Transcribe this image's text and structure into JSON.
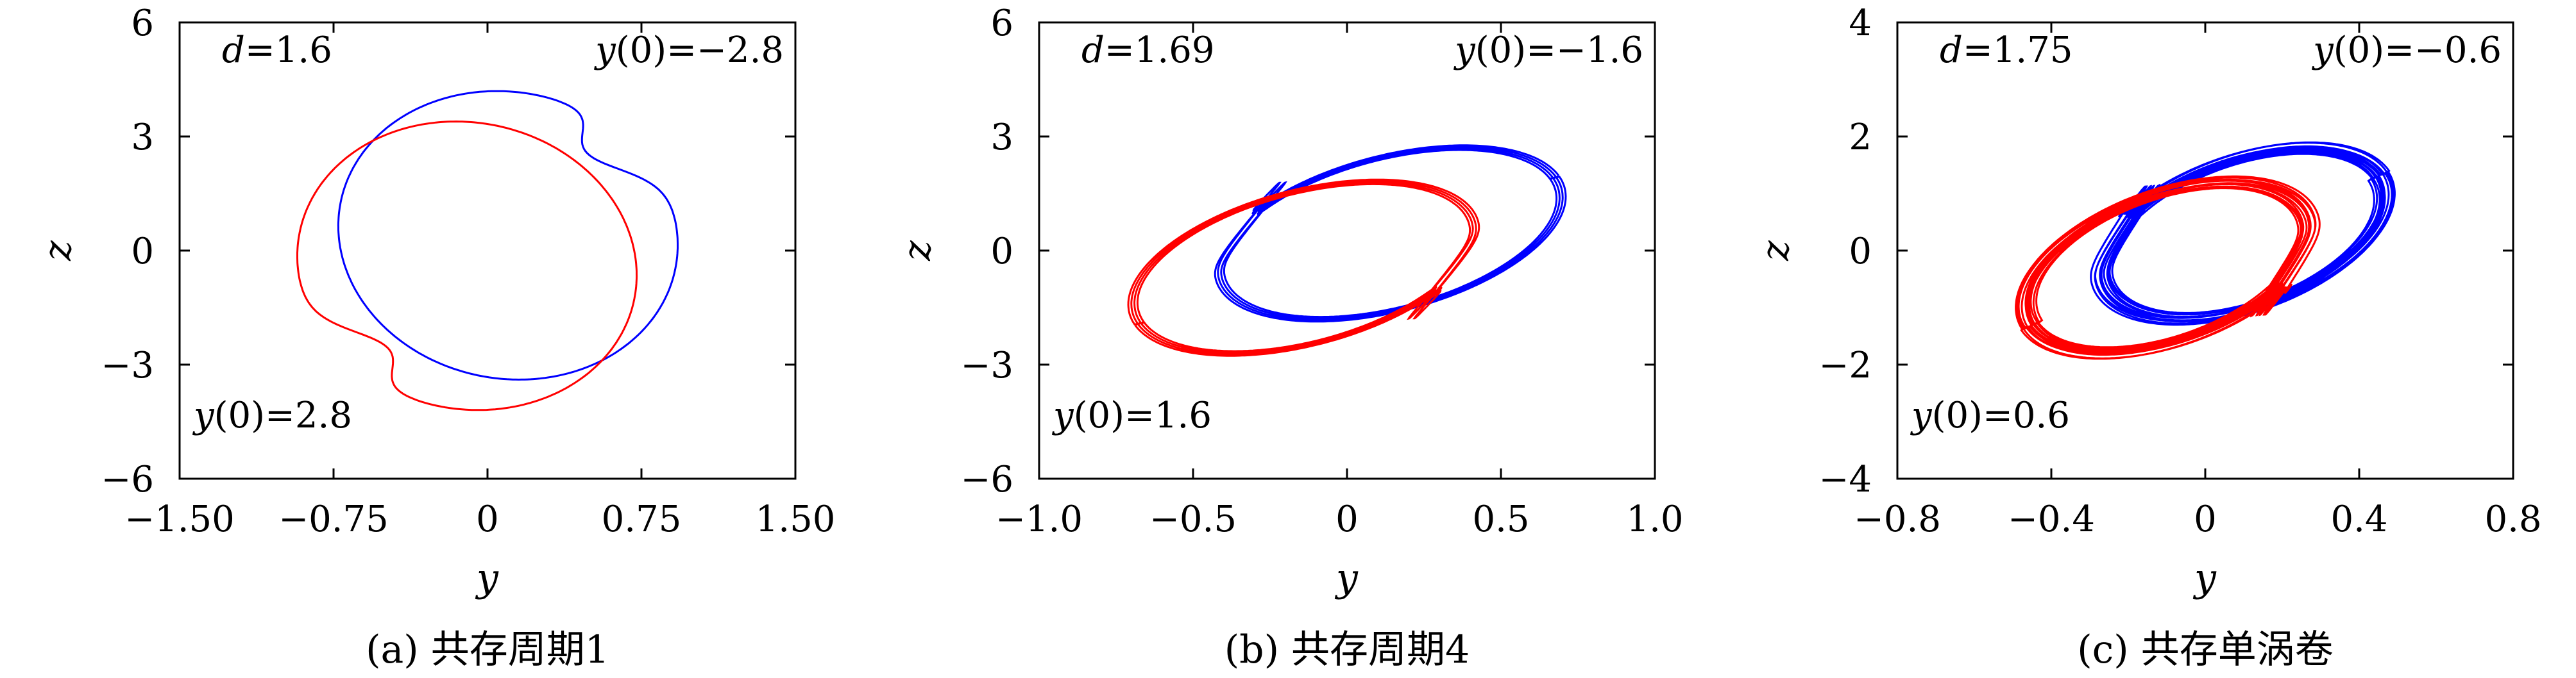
{
  "chart_data": [
    {
      "type": "line",
      "caption": "(a) 共存周期1",
      "xlabel": "y",
      "ylabel": "z",
      "xlim": [
        -1.5,
        1.5
      ],
      "ylim": [
        -6,
        6
      ],
      "xticks": [
        -1.5,
        -0.75,
        0,
        0.75,
        1.5
      ],
      "xtick_labels": [
        "−1.50",
        "−0.75",
        "0",
        "0.75",
        "1.50"
      ],
      "yticks": [
        -6,
        -3,
        0,
        3,
        6
      ],
      "ytick_labels": [
        "−6",
        "−3",
        "0",
        "3",
        "6"
      ],
      "annotation_param": "d=1.6",
      "annotation_ic_blue": "y(0)=−2.8",
      "annotation_ic_red": "y(0)=2.8",
      "series": [
        {
          "color": "#0000ff",
          "kind": "period1",
          "cx": 0.1,
          "cy": 0.4,
          "a": 0.86,
          "b": 3.9,
          "rot_deg": -18,
          "kink": 0.6
        },
        {
          "color": "#ff0000",
          "kind": "period1",
          "cx": -0.1,
          "cy": -0.4,
          "a": 0.86,
          "b": 3.9,
          "rot_deg": -18,
          "kink": 0.6,
          "mirror": true
        }
      ]
    },
    {
      "type": "line",
      "caption": "(b) 共存周期4",
      "xlabel": "y",
      "ylabel": "z",
      "xlim": [
        -1.0,
        1.0
      ],
      "ylim": [
        -6,
        6
      ],
      "xticks": [
        -1.0,
        -0.5,
        0,
        0.5,
        1.0
      ],
      "xtick_labels": [
        "−1.0",
        "−0.5",
        "0",
        "0.5",
        "1.0"
      ],
      "yticks": [
        -6,
        -3,
        0,
        3,
        6
      ],
      "ytick_labels": [
        "−6",
        "−3",
        "0",
        "3",
        "6"
      ],
      "annotation_param": "d=1.69",
      "annotation_ic_blue": "y(0)=−1.6",
      "annotation_ic_red": "y(0)=1.6",
      "series": [
        {
          "color": "#0000ff",
          "kind": "period4",
          "cx": 0.14,
          "cy": 0.45,
          "a": 0.62,
          "b": 3.6,
          "rot_deg": 28,
          "loops": 4
        },
        {
          "color": "#ff0000",
          "kind": "period4",
          "cx": -0.14,
          "cy": -0.45,
          "a": 0.62,
          "b": 3.6,
          "rot_deg": 28,
          "loops": 4,
          "mirror": true
        }
      ]
    },
    {
      "type": "line",
      "caption": "(c) 共存单涡卷",
      "xlabel": "y",
      "ylabel": "z",
      "xlim": [
        -0.8,
        0.8
      ],
      "ylim": [
        -4,
        4
      ],
      "xticks": [
        -0.8,
        -0.4,
        0,
        0.4,
        0.8
      ],
      "xtick_labels": [
        "−0.8",
        "−0.4",
        "0",
        "0.4",
        "0.8"
      ],
      "yticks": [
        -4,
        -2,
        0,
        2,
        4
      ],
      "ytick_labels": [
        "−4",
        "−2",
        "0",
        "2",
        "4"
      ],
      "annotation_param": "d=1.75",
      "annotation_ic_blue": "y(0)=−0.6",
      "annotation_ic_red": "y(0)=0.6",
      "series": [
        {
          "color": "#0000ff",
          "kind": "chaos",
          "cx": 0.1,
          "cy": 0.3,
          "a": 0.42,
          "b": 2.35,
          "rot_deg": 30,
          "loops": 12
        },
        {
          "color": "#ff0000",
          "kind": "chaos",
          "cx": -0.1,
          "cy": -0.3,
          "a": 0.42,
          "b": 2.35,
          "rot_deg": 30,
          "loops": 12,
          "mirror": true
        }
      ]
    }
  ]
}
